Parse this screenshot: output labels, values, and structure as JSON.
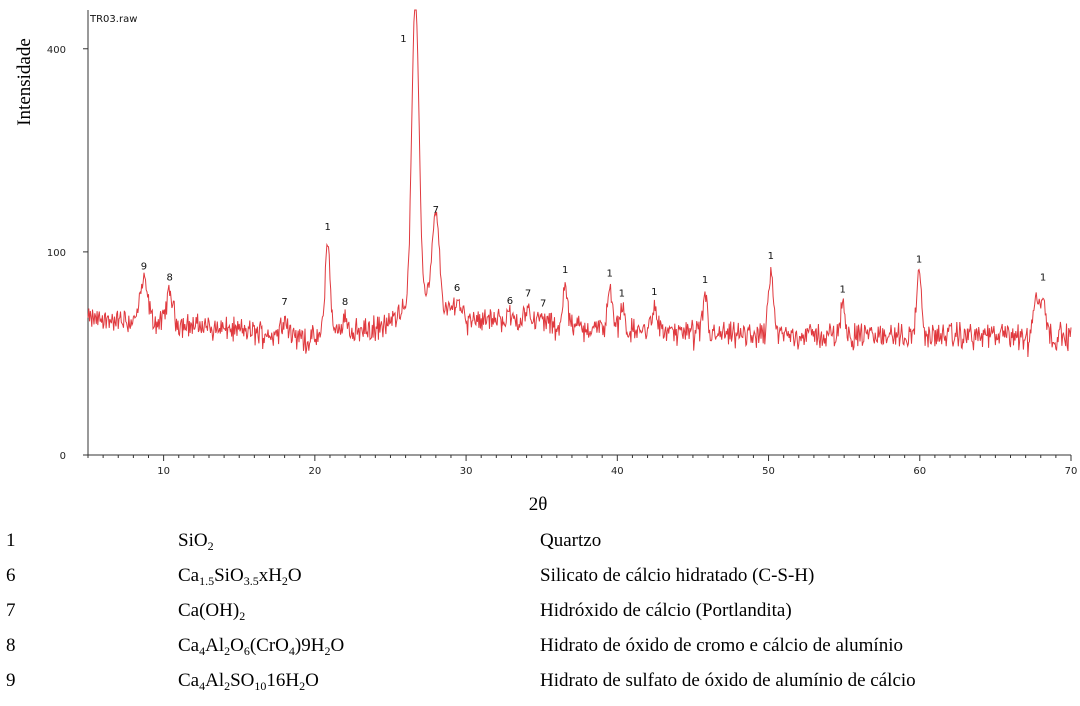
{
  "chart_data": {
    "type": "line",
    "file_label": "TR03.raw",
    "xlabel": "2θ",
    "ylabel": "Intensidade",
    "xlim": [
      5,
      70
    ],
    "ylim": [
      0,
      480
    ],
    "x_ticks": [
      10,
      20,
      30,
      40,
      50,
      60,
      70
    ],
    "y_ticks": [
      0,
      100,
      400
    ],
    "y_scale": "sqrt",
    "series_color": "#e0393e",
    "peaks": [
      {
        "x": 8.7,
        "y": 73,
        "w": 0.35,
        "label": "9"
      },
      {
        "x": 10.4,
        "y": 64,
        "w": 0.3,
        "label": "8"
      },
      {
        "x": 18.0,
        "y": 46,
        "w": 0.3,
        "label": "7"
      },
      {
        "x": 20.85,
        "y": 110,
        "w": 0.22,
        "label": "1"
      },
      {
        "x": 22.0,
        "y": 46,
        "w": 0.3,
        "label": "8"
      },
      {
        "x": 26.65,
        "y": 480,
        "w": 0.28,
        "label": "1"
      },
      {
        "x": 28.0,
        "y": 128,
        "w": 0.3,
        "label": "7"
      },
      {
        "x": 29.4,
        "y": 56,
        "w": 0.4,
        "label": "6"
      },
      {
        "x": 32.9,
        "y": 47,
        "w": 0.4,
        "label": "6"
      },
      {
        "x": 34.1,
        "y": 52,
        "w": 0.3,
        "label": "7"
      },
      {
        "x": 35.1,
        "y": 45,
        "w": 0.3,
        "label": "7"
      },
      {
        "x": 36.55,
        "y": 70,
        "w": 0.2,
        "label": "1"
      },
      {
        "x": 39.5,
        "y": 67,
        "w": 0.2,
        "label": "1"
      },
      {
        "x": 40.3,
        "y": 52,
        "w": 0.2,
        "label": "1"
      },
      {
        "x": 42.45,
        "y": 53,
        "w": 0.25,
        "label": "1"
      },
      {
        "x": 45.8,
        "y": 62,
        "w": 0.2,
        "label": "1"
      },
      {
        "x": 50.15,
        "y": 82,
        "w": 0.22,
        "label": "1"
      },
      {
        "x": 54.9,
        "y": 55,
        "w": 0.2,
        "label": "1"
      },
      {
        "x": 59.95,
        "y": 79,
        "w": 0.22,
        "label": "1"
      },
      {
        "x": 67.7,
        "y": 62,
        "w": 0.22,
        "label": ""
      },
      {
        "x": 68.15,
        "y": 64,
        "w": 0.22,
        "label": "1"
      }
    ]
  },
  "legend": [
    {
      "num": "1",
      "formula": [
        [
          "SiO",
          ""
        ],
        [
          "2",
          "sub"
        ]
      ],
      "name": "Quartzo"
    },
    {
      "num": "6",
      "formula": [
        [
          "Ca",
          ""
        ],
        [
          "1.5",
          "sub"
        ],
        [
          "SiO",
          ""
        ],
        [
          "3.5",
          "sub"
        ],
        [
          "xH",
          ""
        ],
        [
          "2",
          "sub"
        ],
        [
          "O",
          ""
        ]
      ],
      "name": "Silicato de cálcio hidratado (C-S-H)"
    },
    {
      "num": "7",
      "formula": [
        [
          "Ca(OH)",
          ""
        ],
        [
          "2",
          "sub"
        ]
      ],
      "name": "Hidróxido de cálcio (Portlandita)"
    },
    {
      "num": "8",
      "formula": [
        [
          "Ca",
          ""
        ],
        [
          "4",
          "sub"
        ],
        [
          "Al",
          ""
        ],
        [
          "2",
          "sub"
        ],
        [
          "O",
          ""
        ],
        [
          "6",
          "sub"
        ],
        [
          "(CrO",
          ""
        ],
        [
          "4",
          "sub"
        ],
        [
          ")9H",
          ""
        ],
        [
          "2",
          "sub"
        ],
        [
          "O",
          ""
        ]
      ],
      "name": "Hidrato de óxido de cromo e cálcio de alumínio"
    },
    {
      "num": "9",
      "formula": [
        [
          "Ca",
          ""
        ],
        [
          "4",
          "sub"
        ],
        [
          "Al",
          ""
        ],
        [
          "2",
          "sub"
        ],
        [
          "SO",
          ""
        ],
        [
          "10",
          "sub"
        ],
        [
          "16H",
          ""
        ],
        [
          "2",
          "sub"
        ],
        [
          "O",
          ""
        ]
      ],
      "name": "Hidrato de sulfato de óxido de alumínio de cálcio"
    }
  ]
}
